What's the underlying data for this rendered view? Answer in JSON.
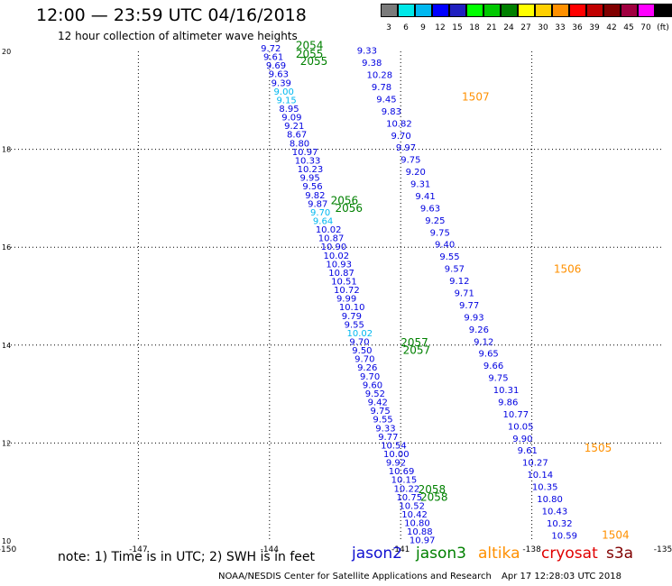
{
  "title": "12:00 — 23:59 UTC 04/16/2018",
  "subtitle": "12 hour collection of altimeter wave heights",
  "colorbar": {
    "colors": [
      "#7a7a7a",
      "#00e8e8",
      "#00b8f0",
      "#0000ff",
      "#2020c0",
      "#00ff00",
      "#00c800",
      "#008000",
      "#ffff00",
      "#ffd000",
      "#ff9000",
      "#ff0000",
      "#c00000",
      "#800000",
      "#a00040",
      "#ff00ff",
      "#000000"
    ],
    "labels": [
      "3",
      "6",
      "9",
      "12",
      "15",
      "18",
      "21",
      "24",
      "27",
      "30",
      "33",
      "36",
      "39",
      "42",
      "45",
      "70",
      "(ft)"
    ]
  },
  "note": "note:  1) Time is in UTC;  2) SWH is in feet",
  "legend": [
    {
      "name": "jason2",
      "color": "#1010d0"
    },
    {
      "name": "jason3",
      "color": "#008000"
    },
    {
      "name": "altika",
      "color": "#ff9000"
    },
    {
      "name": "cryosat",
      "color": "#e00000"
    },
    {
      "name": "s3a",
      "color": "#800000"
    }
  ],
  "footer": "NOAA/NESDIS Center for Satellite Applications and Research",
  "timestamp": "Apr 17 12:28:03 UTC 2018",
  "chart_data": {
    "type": "scatter",
    "xlim": [
      -150,
      -135
    ],
    "ylim": [
      10,
      20
    ],
    "x_ticks": [
      "-150",
      "-147",
      "-144",
      "-141",
      "-138",
      "-135"
    ],
    "x_tick_values": [
      -150,
      -147,
      -144,
      -141,
      -138,
      -135
    ],
    "y_ticks": [
      "20",
      "18",
      "16",
      "14",
      "12",
      "10"
    ],
    "y_tick_values": [
      20,
      18,
      16,
      14,
      12,
      10
    ],
    "grid": true,
    "tracks": [
      {
        "name": "jason3",
        "color": "#0000e0",
        "lon_start": -144.2,
        "lat_start": 20.0,
        "lon_end": -140.8,
        "lat_end": 9.95,
        "values": [
          "9.72",
          "9.61",
          "9.69",
          "9.63",
          "9.39",
          "9.00",
          "9.15",
          "8.95",
          "9.09",
          "9.21",
          "8.67",
          "8.80",
          "10.97",
          "10.33",
          "10.23",
          "9.95",
          "9.56",
          "9.82",
          "9.87",
          "9.70",
          "9.64",
          "10.02",
          "10.87",
          "10.90",
          "10.02",
          "10.93",
          "10.87",
          "10.51",
          "10.72",
          "9.99",
          "10.10",
          "9.79",
          "9.55",
          "10.02",
          "9.70",
          "9.50",
          "9.70",
          "9.26",
          "9.70",
          "9.60",
          "9.52",
          "9.42",
          "9.75",
          "9.55",
          "9.33",
          "9.77",
          "10.54",
          "10.00",
          "9.92",
          "10.69",
          "10.15",
          "10.22",
          "10.75",
          "10.52",
          "10.42",
          "10.80",
          "10.88",
          "10.97"
        ]
      },
      {
        "name": "jason2",
        "color": "#0000e0",
        "lon_start": -142.0,
        "lat_start": 19.95,
        "lon_end": -137.55,
        "lat_end": 10.05,
        "values": [
          "9.33",
          "9.38",
          "10.28",
          "9.78",
          "9.45",
          "9.83",
          "10.82",
          "9.70",
          "9.97",
          "9.75",
          "9.20",
          "9.31",
          "9.41",
          "9.63",
          "9.25",
          "9.75",
          "9.40",
          "9.55",
          "9.57",
          "9.12",
          "9.71",
          "9.77",
          "9.93",
          "9.26",
          "9.12",
          "9.65",
          "9.66",
          "9.75",
          "10.31",
          "9.86",
          "10.77",
          "10.05",
          "9.90",
          "9.61",
          "10.27",
          "10.14",
          "10.35",
          "10.80",
          "10.43",
          "10.32",
          "10.59"
        ]
      }
    ],
    "pass_labels": [
      {
        "text": "2054",
        "lon": -143.4,
        "lat": 20.05,
        "color": "#008000"
      },
      {
        "text": "2055",
        "lon": -143.4,
        "lat": 19.87,
        "color": "#008000"
      },
      {
        "text": "2055",
        "lon": -143.3,
        "lat": 19.72,
        "color": "#008000"
      },
      {
        "text": "2056",
        "lon": -142.6,
        "lat": 16.88,
        "color": "#008000"
      },
      {
        "text": "2056",
        "lon": -142.5,
        "lat": 16.72,
        "color": "#008000"
      },
      {
        "text": "2057",
        "lon": -141.0,
        "lat": 13.98,
        "color": "#008000"
      },
      {
        "text": "2057",
        "lon": -140.95,
        "lat": 13.82,
        "color": "#008000"
      },
      {
        "text": "2058",
        "lon": -140.6,
        "lat": 10.98,
        "color": "#008000"
      },
      {
        "text": "2058",
        "lon": -140.55,
        "lat": 10.82,
        "color": "#008000"
      },
      {
        "text": "1507",
        "lon": -139.6,
        "lat": 19.0,
        "color": "#ff9000"
      },
      {
        "text": "1506",
        "lon": -137.5,
        "lat": 15.48,
        "color": "#ff9000"
      },
      {
        "text": "1505",
        "lon": -136.8,
        "lat": 11.82,
        "color": "#ff9000"
      },
      {
        "text": "1504",
        "lon": -136.4,
        "lat": 10.05,
        "color": "#ff9000"
      }
    ]
  }
}
